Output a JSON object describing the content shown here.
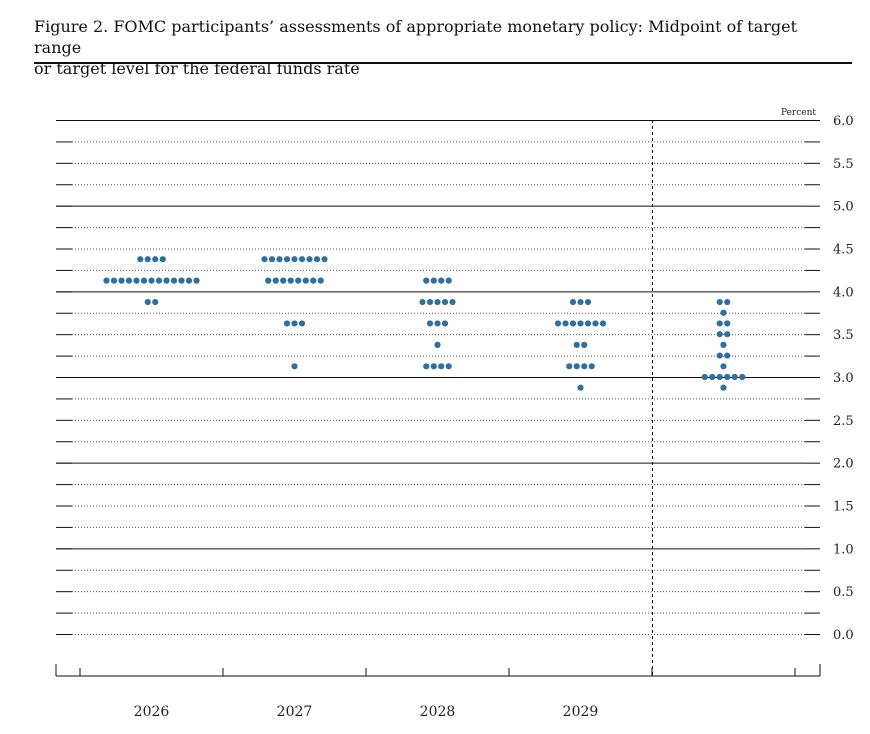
{
  "figure": {
    "title_line1": "Figure 2. FOMC participants’ assessments of appropriate monetary policy: Midpoint of target range",
    "title_line2": "or target level for the federal funds rate"
  },
  "chart_data": {
    "type": "scatter",
    "subtype": "dot-plot",
    "ylabel": "Percent",
    "ylim": [
      0,
      6
    ],
    "y_ticks": [
      "6.0",
      "5.5",
      "5.0",
      "4.5",
      "4.0",
      "3.5",
      "3.0",
      "2.5",
      "2.0",
      "1.5",
      "1.0",
      "0.5",
      "0.0"
    ],
    "grid": "solid at whole percents, dotted at each 0.25",
    "categories": [
      "2026",
      "2027",
      "2028",
      "2029",
      ""
    ],
    "colors": {
      "dot": "#2e6f9e",
      "grid": "#111111"
    },
    "groups": [
      {
        "category": "2026",
        "dots": [
          {
            "y": 4.375,
            "count": 4
          },
          {
            "y": 4.125,
            "count": 13
          },
          {
            "y": 3.875,
            "count": 2
          }
        ]
      },
      {
        "category": "2027",
        "dots": [
          {
            "y": 4.375,
            "count": 9
          },
          {
            "y": 4.125,
            "count": 8
          },
          {
            "y": 3.625,
            "count": 3
          },
          {
            "y": 3.125,
            "count": 1
          }
        ]
      },
      {
        "category": "2028",
        "dots": [
          {
            "y": 4.125,
            "count": 4
          },
          {
            "y": 3.875,
            "count": 5
          },
          {
            "y": 3.625,
            "count": 3
          },
          {
            "y": 3.375,
            "count": 1
          },
          {
            "y": 3.125,
            "count": 4
          }
        ]
      },
      {
        "category": "2029",
        "dots": [
          {
            "y": 3.875,
            "count": 3
          },
          {
            "y": 3.625,
            "count": 7
          },
          {
            "y": 3.375,
            "count": 2
          },
          {
            "y": 3.125,
            "count": 4
          },
          {
            "y": 2.875,
            "count": 1
          }
        ]
      },
      {
        "category": "",
        "dots": [
          {
            "y": 3.875,
            "count": 2
          },
          {
            "y": 3.75,
            "count": 1
          },
          {
            "y": 3.625,
            "count": 2
          },
          {
            "y": 3.5,
            "count": 2
          },
          {
            "y": 3.375,
            "count": 1
          },
          {
            "y": 3.25,
            "count": 2
          },
          {
            "y": 3.125,
            "count": 1
          },
          {
            "y": 3.0,
            "count": 6
          },
          {
            "y": 2.875,
            "count": 1
          }
        ]
      }
    ]
  }
}
